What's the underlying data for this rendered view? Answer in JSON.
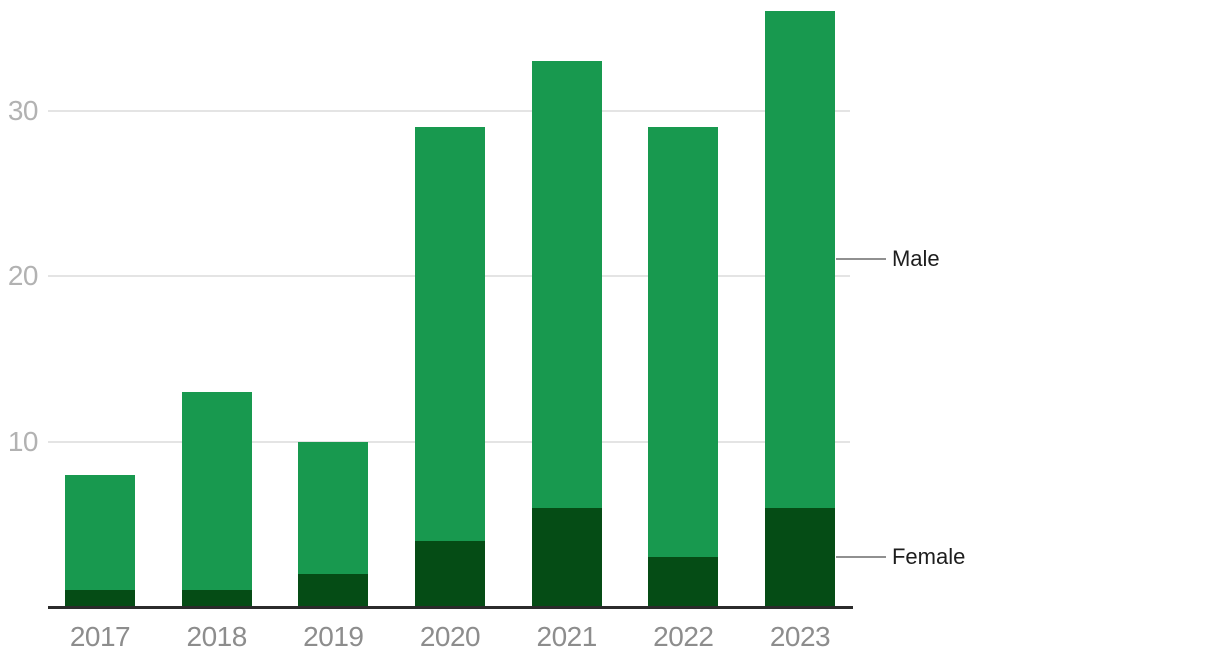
{
  "chart_data": {
    "type": "bar",
    "stacked": true,
    "categories": [
      "2017",
      "2018",
      "2019",
      "2020",
      "2021",
      "2022",
      "2023"
    ],
    "series": [
      {
        "name": "Female",
        "color": "#054c15",
        "values": [
          1,
          1,
          2,
          4,
          6,
          3,
          6
        ]
      },
      {
        "name": "Male",
        "color": "#18994f",
        "values": [
          7,
          12,
          8,
          25,
          27,
          26,
          30
        ]
      }
    ],
    "totals": [
      8,
      13,
      10,
      29,
      33,
      29,
      36
    ],
    "y_ticks": [
      10,
      20,
      30
    ],
    "ylim": [
      0,
      36.3
    ],
    "grid": "horizontal",
    "legend": {
      "position": "right",
      "style": "direct-labels",
      "entries": [
        "Male",
        "Female"
      ]
    },
    "colors": {
      "background": "#ffffff",
      "grid": "#e4e4e4",
      "axis_line": "#2b2b2b",
      "x_tick_label": "#8d8d8d",
      "y_tick_label": "#b2b2b2",
      "direct_label_text": "#1e1e1e",
      "connector": "#909090"
    }
  }
}
